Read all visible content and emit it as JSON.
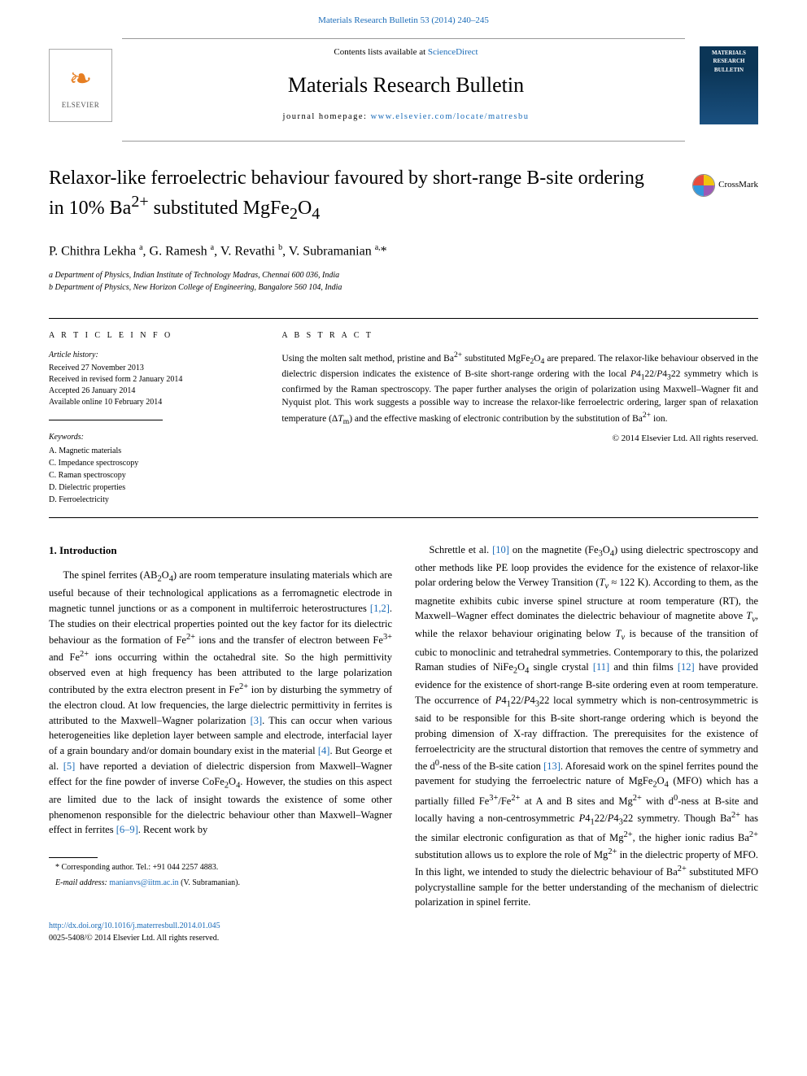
{
  "journal_ref": "Materials Research Bulletin 53 (2014) 240–245",
  "banner": {
    "contents_prefix": "Contents lists available at ",
    "contents_link": "ScienceDirect",
    "journal_name": "Materials Research Bulletin",
    "homepage_prefix": "journal homepage: ",
    "homepage_link": "www.elsevier.com/locate/matresbu",
    "publisher": "ELSEVIER",
    "cover_t1": "MATERIALS",
    "cover_t2": "RESEARCH",
    "cover_t3": "BULLETIN"
  },
  "crossmark_label": "CrossMark",
  "title_html": "Relaxor-like ferroelectric behaviour favoured by short-range B-site ordering in 10% Ba<sup>2+</sup> substituted MgFe<sub>2</sub>O<sub>4</sub>",
  "authors_html": "P. Chithra Lekha <sup>a</sup>, G. Ramesh <sup>a</sup>, V. Revathi <sup>b</sup>, V. Subramanian <sup>a,</sup>*",
  "affiliations": [
    "a Department of Physics, Indian Institute of Technology Madras, Chennai 600 036, India",
    "b Department of Physics, New Horizon College of Engineering, Bangalore 560 104, India"
  ],
  "info_heading": "A R T I C L E   I N F O",
  "abstract_heading": "A B S T R A C T",
  "history_heading": "Article history:",
  "history": [
    "Received 27 November 2013",
    "Received in revised form 2 January 2014",
    "Accepted 26 January 2014",
    "Available online 10 February 2014"
  ],
  "keywords_heading": "Keywords:",
  "keywords": [
    "A. Magnetic materials",
    "C. Impedance spectroscopy",
    "C. Raman spectroscopy",
    "D. Dielectric properties",
    "D. Ferroelectricity"
  ],
  "abstract_html": "Using the molten salt method, pristine and Ba<sup>2+</sup> substituted MgFe<sub>2</sub>O<sub>4</sub> are prepared. The relaxor-like behaviour observed in the dielectric dispersion indicates the existence of B-site short-range ordering with the local <i>P</i>4<sub>1</sub>22/<i>P</i>4<sub>3</sub>22 symmetry which is confirmed by the Raman spectroscopy. The paper further analyses the origin of polarization using Maxwell–Wagner fit and Nyquist plot. This work suggests a possible way to increase the relaxor-like ferroelectric ordering, larger span of relaxation temperature (Δ<i>T</i><sub>m</sub>) and the effective masking of electronic contribution by the substitution of Ba<sup>2+</sup> ion.",
  "copyright": "© 2014 Elsevier Ltd. All rights reserved.",
  "section1_heading": "1. Introduction",
  "para1_html": "The spinel ferrites (AB<sub>2</sub>O<sub>4</sub>) are room temperature insulating materials which are useful because of their technological applications as a ferromagnetic electrode in magnetic tunnel junctions or as a component in multiferroic heterostructures <span class=\"ref\">[1,2]</span>. The studies on their electrical properties pointed out the key factor for its dielectric behaviour as the formation of Fe<sup>2+</sup> ions and the transfer of electron between Fe<sup>3+</sup> and Fe<sup>2+</sup> ions occurring within the octahedral site. So the high permittivity observed even at high frequency has been attributed to the large polarization contributed by the extra electron present in Fe<sup>2+</sup> ion by disturbing the symmetry of the electron cloud. At low frequencies, the large dielectric permittivity in ferrites is attributed to the Maxwell–Wagner polarization <span class=\"ref\">[3]</span>. This can occur when various heterogeneities like depletion layer between sample and electrode, interfacial layer of a grain boundary and/or domain boundary exist in the material <span class=\"ref\">[4]</span>. But George et al. <span class=\"ref\">[5]</span> have reported a deviation of dielectric dispersion from Maxwell–Wagner effect for the fine powder of inverse CoFe<sub>2</sub>O<sub>4</sub>. However, the studies on this aspect are limited due to the lack of insight towards the existence of some other phenomenon responsible for the dielectric behaviour other than Maxwell–Wagner effect in ferrites <span class=\"ref\">[6–9]</span>. Recent work by",
  "para2_html": "Schrettle et al. <span class=\"ref\">[10]</span> on the magnetite (Fe<sub>3</sub>O<sub>4</sub>) using dielectric spectroscopy and other methods like PE loop provides the evidence for the existence of relaxor-like polar ordering below the Verwey Transition (<i>T</i><sub><i>v</i></sub> ≈ 122 K). According to them, as the magnetite exhibits cubic inverse spinel structure at room temperature (RT), the Maxwell–Wagner effect dominates the dielectric behaviour of magnetite above <i>T</i><sub><i>v</i></sub>, while the relaxor behaviour originating below <i>T</i><sub><i>v</i></sub> is because of the transition of cubic to monoclinic and tetrahedral symmetries. Contemporary to this, the polarized Raman studies of NiFe<sub>2</sub>O<sub>4</sub> single crystal <span class=\"ref\">[11]</span> and thin films <span class=\"ref\">[12]</span> have provided evidence for the existence of short-range B-site ordering even at room temperature. The occurrence of <i>P</i>4<sub>1</sub>22/<i>P</i>4<sub>3</sub>22 local symmetry which is non-centrosymmetric is said to be responsible for this B-site short-range ordering which is beyond the probing dimension of X-ray diffraction. The prerequisites for the existence of ferroelectricity are the structural distortion that removes the centre of symmetry and the d<sup>0</sup>-ness of the B-site cation <span class=\"ref\">[13]</span>. Aforesaid work on the spinel ferrites pound the pavement for studying the ferroelectric nature of MgFe<sub>2</sub>O<sub>4</sub> (MFO) which has a partially filled Fe<sup>3+</sup>/Fe<sup>2+</sup> at A and B sites and Mg<sup>2+</sup> with d<sup>0</sup>-ness at B-site and locally having a non-centrosymmetric <i>P</i>4<sub>1</sub>22/<i>P</i>4<sub>3</sub>22 symmetry. Though Ba<sup>2+</sup> has the similar electronic configuration as that of Mg<sup>2+</sup>, the higher ionic radius Ba<sup>2+</sup> substitution allows us to explore the role of Mg<sup>2+</sup> in the dielectric property of MFO. In this light, we intended to study the dielectric behaviour of Ba<sup>2+</sup> substituted MFO polycrystalline sample for the better understanding of the mechanism of dielectric polarization in spinel ferrite.",
  "footnote_corr": "* Corresponding author. Tel.: +91 044 2257 4883.",
  "footnote_email_label": "E-mail address: ",
  "footnote_email": "manianvs@iitm.ac.in",
  "footnote_email_tail": " (V. Subramanian).",
  "footer_doi": "http://dx.doi.org/10.1016/j.materresbull.2014.01.045",
  "footer_issn": "0025-5408/© 2014 Elsevier Ltd. All rights reserved.",
  "colors": {
    "link": "#1a6bb8",
    "text": "#000000",
    "elsevier_orange": "#e67e22",
    "cover_bg_top": "#0b3556",
    "cover_bg_bottom": "#1a5080"
  }
}
